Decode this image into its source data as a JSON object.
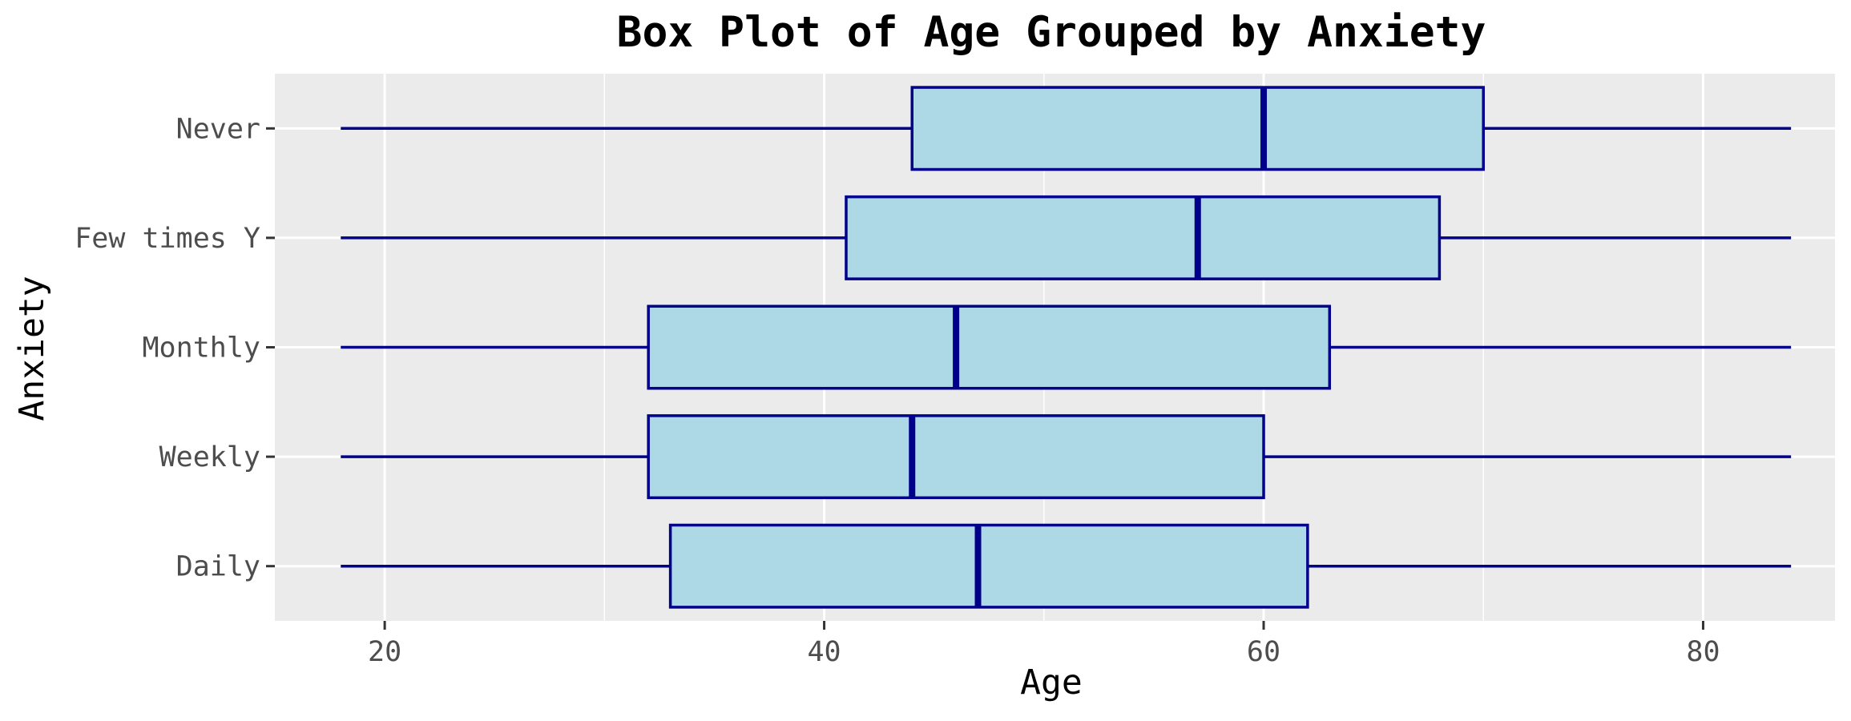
{
  "chart_data": {
    "type": "boxplot",
    "orientation": "horizontal",
    "title": "Box Plot of Age Grouped by Anxiety",
    "xlabel": "Age",
    "ylabel": "Anxiety",
    "xlim": [
      15,
      86
    ],
    "xticks": [
      20,
      40,
      60,
      80
    ],
    "grid": true,
    "legend": "none",
    "categories": [
      "Never",
      "Few times Y",
      "Monthly",
      "Weekly",
      "Daily"
    ],
    "boxes": [
      {
        "category": "Never",
        "min": 18,
        "q1": 44,
        "median": 60,
        "q3": 70,
        "max": 84
      },
      {
        "category": "Few times Y",
        "min": 18,
        "q1": 41,
        "median": 57,
        "q3": 68,
        "max": 84
      },
      {
        "category": "Monthly",
        "min": 18,
        "q1": 32,
        "median": 46,
        "q3": 63,
        "max": 84
      },
      {
        "category": "Weekly",
        "min": 18,
        "q1": 32,
        "median": 44,
        "q3": 60,
        "max": 84
      },
      {
        "category": "Daily",
        "min": 18,
        "q1": 33,
        "median": 47,
        "q3": 62,
        "max": 84
      }
    ],
    "colors": {
      "box_fill": "#ADD8E6",
      "box_stroke": "#00008B",
      "panel_bg": "#EBEBEB",
      "grid": "#FFFFFF"
    }
  }
}
